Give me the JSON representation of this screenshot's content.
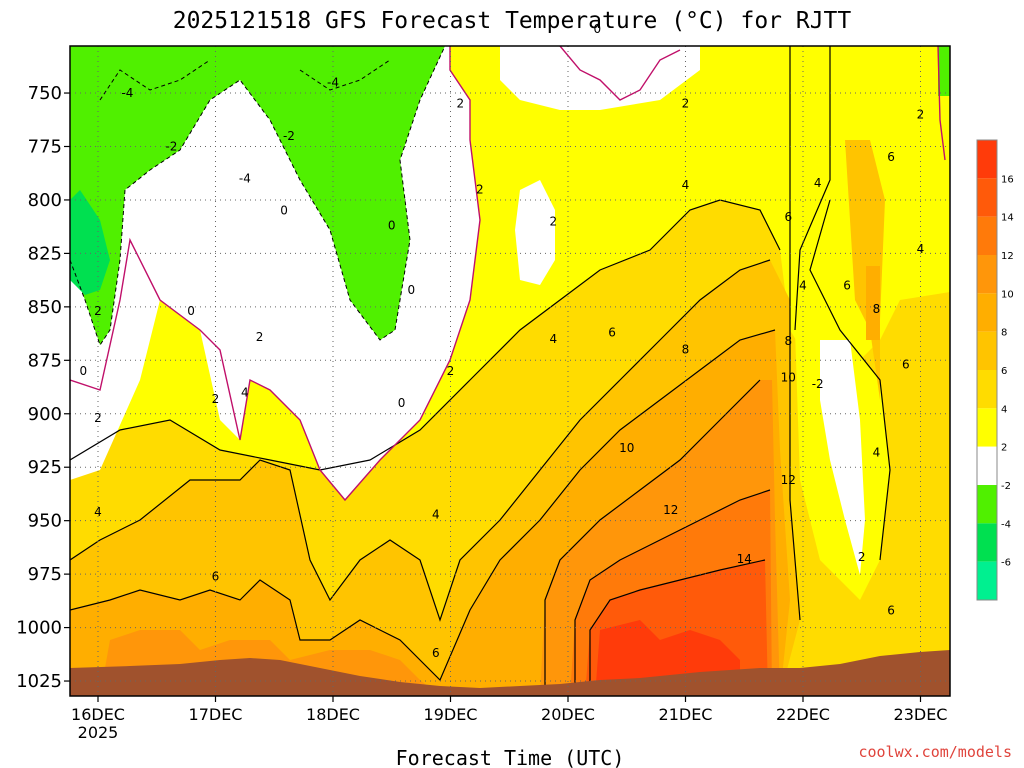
{
  "chart_data": {
    "type": "heatmap",
    "title": "2025121518 GFS Forecast Temperature (°C) for RJTT",
    "xlabel": "Forecast Time (UTC)",
    "ylabel": "",
    "x_ticks": [
      "16DEC",
      "17DEC",
      "18DEC",
      "19DEC",
      "20DEC",
      "21DEC",
      "22DEC",
      "23DEC"
    ],
    "x_year_label": "2025",
    "y_ticks": [
      750,
      775,
      800,
      825,
      850,
      875,
      900,
      925,
      950,
      975,
      1000,
      1025
    ],
    "ylim": [
      1032,
      728
    ],
    "colorbar": {
      "labels": [
        16,
        14,
        12,
        10,
        8,
        6,
        4,
        2,
        -2,
        -4,
        -6
      ],
      "colors": [
        "#ff3b0a",
        "#ff5a0a",
        "#ff7a0a",
        "#ff960a",
        "#ffae00",
        "#ffc400",
        "#ffdc00",
        "#ffff00",
        "#ffffff",
        "#50f000",
        "#00e050",
        "#00f090"
      ]
    },
    "contour_labels": [
      {
        "time": "16DEC 06",
        "p": 750,
        "v": "-4"
      },
      {
        "time": "16DEC 15",
        "p": 775,
        "v": "-2"
      },
      {
        "time": "17DEC 06",
        "p": 790,
        "v": "-4"
      },
      {
        "time": "18DEC 00",
        "p": 745,
        "v": "-4"
      },
      {
        "time": "17DEC 15",
        "p": 770,
        "v": "-2"
      },
      {
        "time": "17DEC 14",
        "p": 805,
        "v": "0"
      },
      {
        "time": "16DEC 00",
        "p": 852,
        "v": "2"
      },
      {
        "time": "15DEC 21",
        "p": 880,
        "v": "0"
      },
      {
        "time": "16DEC 19",
        "p": 852,
        "v": "0"
      },
      {
        "time": "18DEC 12",
        "p": 812,
        "v": "0"
      },
      {
        "time": "19DEC 02",
        "p": 755,
        "v": "2"
      },
      {
        "time": "18DEC 14",
        "p": 895,
        "v": "0"
      },
      {
        "time": "18DEC 16",
        "p": 842,
        "v": "0"
      },
      {
        "time": "19DEC 00",
        "p": 880,
        "v": "2"
      },
      {
        "time": "16DEC 00",
        "p": 902,
        "v": "2"
      },
      {
        "time": "17DEC 00",
        "p": 893,
        "v": "2"
      },
      {
        "time": "17DEC 06",
        "p": 890,
        "v": "4"
      },
      {
        "time": "17DEC 09",
        "p": 864,
        "v": "2"
      },
      {
        "time": "16DEC 00",
        "p": 946,
        "v": "4"
      },
      {
        "time": "17DEC 00",
        "p": 976,
        "v": "6"
      },
      {
        "time": "18DEC 21",
        "p": 947,
        "v": "4"
      },
      {
        "time": "19DEC 06",
        "p": 795,
        "v": "2"
      },
      {
        "time": "19DEC 21",
        "p": 810,
        "v": "2"
      },
      {
        "time": "19DEC 21",
        "p": 865,
        "v": "4"
      },
      {
        "time": "20DEC 09",
        "p": 862,
        "v": "6"
      },
      {
        "time": "21DEC 00",
        "p": 793,
        "v": "4"
      },
      {
        "time": "21DEC 00",
        "p": 755,
        "v": "2"
      },
      {
        "time": "21DEC 00",
        "p": 870,
        "v": "8"
      },
      {
        "time": "20DEC 12",
        "p": 916,
        "v": "10"
      },
      {
        "time": "20DEC 21",
        "p": 945,
        "v": "12"
      },
      {
        "time": "21DEC 12",
        "p": 968,
        "v": "14"
      },
      {
        "time": "21DEC 21",
        "p": 866,
        "v": "8"
      },
      {
        "time": "21DEC 21",
        "p": 883,
        "v": "10"
      },
      {
        "time": "21DEC 21",
        "p": 931,
        "v": "12"
      },
      {
        "time": "21DEC 21",
        "p": 808,
        "v": "6"
      },
      {
        "time": "22DEC 03",
        "p": 792,
        "v": "4"
      },
      {
        "time": "22DEC 00",
        "p": 840,
        "v": "4"
      },
      {
        "time": "22DEC 09",
        "p": 840,
        "v": "6"
      },
      {
        "time": "22DEC 15",
        "p": 851,
        "v": "8"
      },
      {
        "time": "22DEC 18",
        "p": 780,
        "v": "6"
      },
      {
        "time": "22DEC 03",
        "p": 886,
        "v": "-2"
      },
      {
        "time": "22DEC 15",
        "p": 918,
        "v": "4"
      },
      {
        "time": "22DEC 12",
        "p": 967,
        "v": "2"
      },
      {
        "time": "23DEC 00",
        "p": 823,
        "v": "4"
      },
      {
        "time": "22DEC 21",
        "p": 877,
        "v": "6"
      },
      {
        "time": "22DEC 18",
        "p": 992,
        "v": "6"
      },
      {
        "time": "23DEC 00",
        "p": 760,
        "v": "2"
      },
      {
        "time": "18DEC 21",
        "p": 1012,
        "v": "6"
      },
      {
        "time": "20DEC 06",
        "p": 720,
        "v": "0"
      }
    ]
  },
  "credit": "coolwx.com/models"
}
